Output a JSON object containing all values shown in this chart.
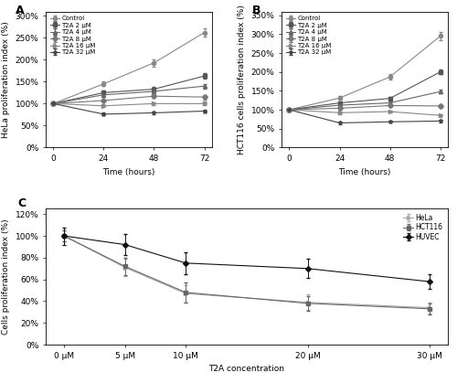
{
  "panel_A": {
    "title": "A",
    "xlabel": "Time (hours)",
    "ylabel": "HeLa proliferation index (%)",
    "x": [
      0,
      24,
      48,
      72
    ],
    "series": [
      {
        "label": "Control",
        "y": [
          100,
          145,
          193,
          262
        ],
        "yerr": [
          0,
          5,
          8,
          10
        ],
        "color": "#888888",
        "marker": "o",
        "linestyle": "-"
      },
      {
        "label": "T2A 2 μM",
        "y": [
          100,
          125,
          133,
          163
        ],
        "yerr": [
          0,
          4,
          5,
          6
        ],
        "color": "#555555",
        "marker": "s",
        "linestyle": "-"
      },
      {
        "label": "T2A 4 μM",
        "y": [
          100,
          120,
          128,
          140
        ],
        "yerr": [
          0,
          3,
          4,
          5
        ],
        "color": "#666666",
        "marker": "^",
        "linestyle": "-"
      },
      {
        "label": "T2A 8 μM",
        "y": [
          100,
          107,
          117,
          115
        ],
        "yerr": [
          0,
          3,
          4,
          5
        ],
        "color": "#777777",
        "marker": "D",
        "linestyle": "-"
      },
      {
        "label": "T2A 16 μM",
        "y": [
          100,
          95,
          100,
          100
        ],
        "yerr": [
          0,
          3,
          3,
          4
        ],
        "color": "#888888",
        "marker": ">",
        "linestyle": "-"
      },
      {
        "label": "T2A 32 μM",
        "y": [
          100,
          76,
          79,
          83
        ],
        "yerr": [
          0,
          3,
          3,
          3
        ],
        "color": "#444444",
        "marker": "*",
        "linestyle": "-"
      }
    ],
    "ylim": [
      0,
      310
    ],
    "yticks": [
      0,
      50,
      100,
      150,
      200,
      250,
      300
    ],
    "ytick_labels": [
      "0%",
      "50%",
      "100%",
      "150%",
      "200%",
      "250%",
      "300%"
    ],
    "xticks": [
      0,
      24,
      48,
      72
    ]
  },
  "panel_B": {
    "title": "B",
    "xlabel": "Time (hours)",
    "ylabel": "HCT116 cells proliferation index (%)",
    "x": [
      0,
      24,
      48,
      72
    ],
    "series": [
      {
        "label": "Control",
        "y": [
          100,
          131,
          187,
          295
        ],
        "yerr": [
          0,
          5,
          8,
          10
        ],
        "color": "#888888",
        "marker": "o",
        "linestyle": "-"
      },
      {
        "label": "T2A 2 μM",
        "y": [
          100,
          118,
          130,
          200
        ],
        "yerr": [
          0,
          4,
          5,
          6
        ],
        "color": "#555555",
        "marker": "s",
        "linestyle": "-"
      },
      {
        "label": "T2A 4 μM",
        "y": [
          100,
          112,
          118,
          148
        ],
        "yerr": [
          0,
          3,
          4,
          5
        ],
        "color": "#666666",
        "marker": "^",
        "linestyle": "-"
      },
      {
        "label": "T2A 8 μM",
        "y": [
          100,
          104,
          111,
          110
        ],
        "yerr": [
          0,
          3,
          4,
          5
        ],
        "color": "#777777",
        "marker": "D",
        "linestyle": "-"
      },
      {
        "label": "T2A 16 μM",
        "y": [
          100,
          92,
          95,
          85
        ],
        "yerr": [
          0,
          3,
          3,
          4
        ],
        "color": "#888888",
        "marker": ">",
        "linestyle": "-"
      },
      {
        "label": "T2A 32 μM",
        "y": [
          100,
          65,
          68,
          70
        ],
        "yerr": [
          0,
          3,
          3,
          3
        ],
        "color": "#444444",
        "marker": "*",
        "linestyle": "-"
      }
    ],
    "ylim": [
      0,
      360
    ],
    "yticks": [
      0,
      50,
      100,
      150,
      200,
      250,
      300,
      350
    ],
    "ytick_labels": [
      "0%",
      "50%",
      "100%",
      "150%",
      "200%",
      "250%",
      "300%",
      "350%"
    ],
    "xticks": [
      0,
      24,
      48,
      72
    ]
  },
  "panel_C": {
    "title": "C",
    "xlabel": "T2A concentration",
    "ylabel": "Cells proliferation index (%)",
    "x": [
      0,
      5,
      10,
      20,
      30
    ],
    "series": [
      {
        "label": "HeLa",
        "y": [
          100,
          71,
          47,
          39,
          34
        ],
        "yerr": [
          5,
          8,
          8,
          7,
          5
        ],
        "color": "#aaaaaa",
        "marker": ">",
        "linestyle": "-"
      },
      {
        "label": "HCT116",
        "y": [
          100,
          72,
          48,
          38,
          33
        ],
        "yerr": [
          5,
          8,
          9,
          7,
          5
        ],
        "color": "#666666",
        "marker": "s",
        "linestyle": "-"
      },
      {
        "label": "HUVEC",
        "y": [
          100,
          92,
          75,
          70,
          58
        ],
        "yerr": [
          8,
          10,
          10,
          9,
          7
        ],
        "color": "#111111",
        "marker": "D",
        "linestyle": "-"
      }
    ],
    "ylim": [
      0,
      125
    ],
    "yticks": [
      0,
      20,
      40,
      60,
      80,
      100,
      120
    ],
    "ytick_labels": [
      "0%",
      "20%",
      "40%",
      "60%",
      "80%",
      "100%",
      "120%"
    ],
    "xticks": [
      0,
      5,
      10,
      20,
      30
    ],
    "xtick_labels": [
      "0 μM",
      "5 μM",
      "10 μM",
      "20 μM",
      "30 μM"
    ]
  }
}
